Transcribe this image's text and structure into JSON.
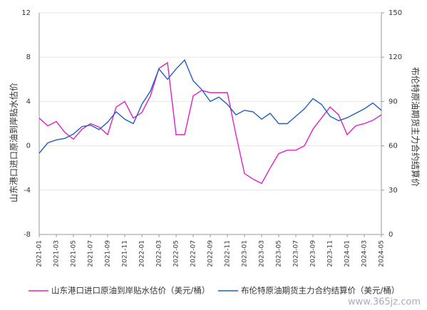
{
  "chart_data": {
    "type": "line",
    "y_label": "山东港口进口原油到岸贴水估价",
    "y2_label": "布伦特原油期货主力合约结算价",
    "watermark": "www.365jz.com",
    "categories": [
      "2021-01",
      null,
      "2021-03",
      null,
      "2021-05",
      null,
      "2021-07",
      null,
      "2021-09",
      null,
      "2021-11",
      null,
      "2022-01",
      null,
      "2022-03",
      null,
      "2022-05",
      null,
      "2022-07",
      null,
      "2022-09",
      null,
      "2022-11",
      null,
      "2023-01",
      null,
      "2023-03",
      null,
      "2023-05",
      null,
      "2023-07",
      null,
      "2023-09",
      null,
      "2023-11",
      null,
      "2024-01",
      null,
      "2024-03",
      null,
      "2024-05"
    ],
    "series": [
      {
        "name": "山东港口进口原油到岸贴水估价（美元/桶）",
        "color": "#e020c8",
        "values": [
          2.5,
          1.8,
          2.2,
          1.2,
          0.6,
          1.5,
          2.0,
          1.7,
          1.0,
          3.5,
          4.0,
          2.5,
          3.0,
          4.5,
          7.0,
          7.5,
          1.0,
          1.0,
          4.5,
          5.0,
          4.8,
          4.8,
          4.8,
          1.0,
          -2.5,
          -3.0,
          -3.4,
          -2.0,
          -0.7,
          -0.4,
          -0.4,
          0,
          1.5,
          2.5,
          3.5,
          2.8,
          1.0,
          1.8,
          2.0,
          2.3,
          2.8
        ]
      },
      {
        "name": "布伦特原油期货主力合约结算价（美元/桶）",
        "color": "#1f5fc0",
        "axis": "y2",
        "values": [
          55,
          62,
          64,
          65,
          68,
          73,
          74,
          71,
          76,
          83,
          78,
          75,
          88,
          97,
          112,
          105,
          112,
          118,
          104,
          98,
          90,
          93,
          88,
          81,
          84,
          83,
          78,
          82,
          75,
          75,
          80,
          85,
          92,
          88,
          80,
          77,
          79,
          82,
          85,
          89,
          84
        ]
      }
    ],
    "ylim": [
      -8,
      12
    ],
    "yticks": [
      -8,
      -4,
      0,
      4,
      8,
      12
    ],
    "y2lim": [
      0,
      150
    ],
    "y2ticks": [
      0,
      30,
      60,
      90,
      120,
      150
    ],
    "grid": true
  }
}
